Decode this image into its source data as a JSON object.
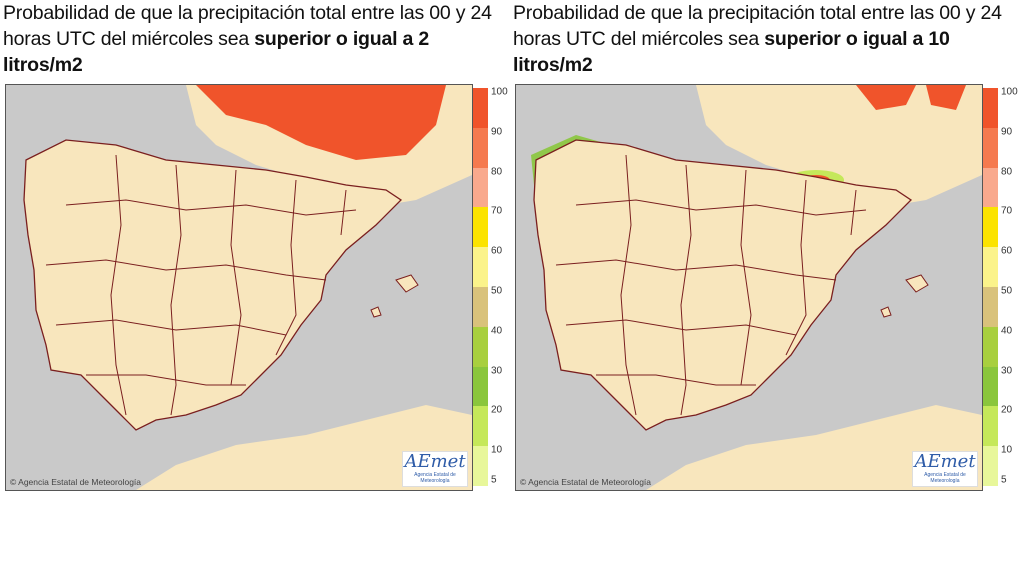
{
  "panels": [
    {
      "caption_prefix": "Probabilidad de que la precipitación total entre las 00 y 24 horas UTC del miércoles sea ",
      "caption_bold": "superior o igual a 2 litros/m2",
      "credit": "© Agencia Estatal de Meteorología",
      "logo_text": "AEmet",
      "logo_subtext": "Agencia Estatal de Meteorología"
    },
    {
      "caption_prefix": "Probabilidad de que la precipitación total entre las 00 y 24 horas UTC del miércoles sea ",
      "caption_bold": "superior o igual a 10 litros/m2",
      "credit": "© Agencia Estatal de Meteorología",
      "logo_text": "AEmet",
      "logo_subtext": "Agencia Estatal de Meteorología"
    }
  ],
  "legend": {
    "labels": [
      "100",
      "90",
      "80",
      "70",
      "60",
      "50",
      "40",
      "30",
      "20",
      "10",
      "5"
    ],
    "colors": [
      "#f0542b",
      "#f57a4f",
      "#f9a98d",
      "#fbe300",
      "#fbf38a",
      "#d9c27b",
      "#a8cf3e",
      "#8ac63c",
      "#c5e85a",
      "#e8f79a"
    ]
  },
  "colors": {
    "sea": "#c9c9c9",
    "land": "#f8e6bd",
    "border": "#7a1f1f",
    "high": "#f0542b",
    "mid_green": "#8ac63c",
    "light_green": "#c5e85a"
  }
}
